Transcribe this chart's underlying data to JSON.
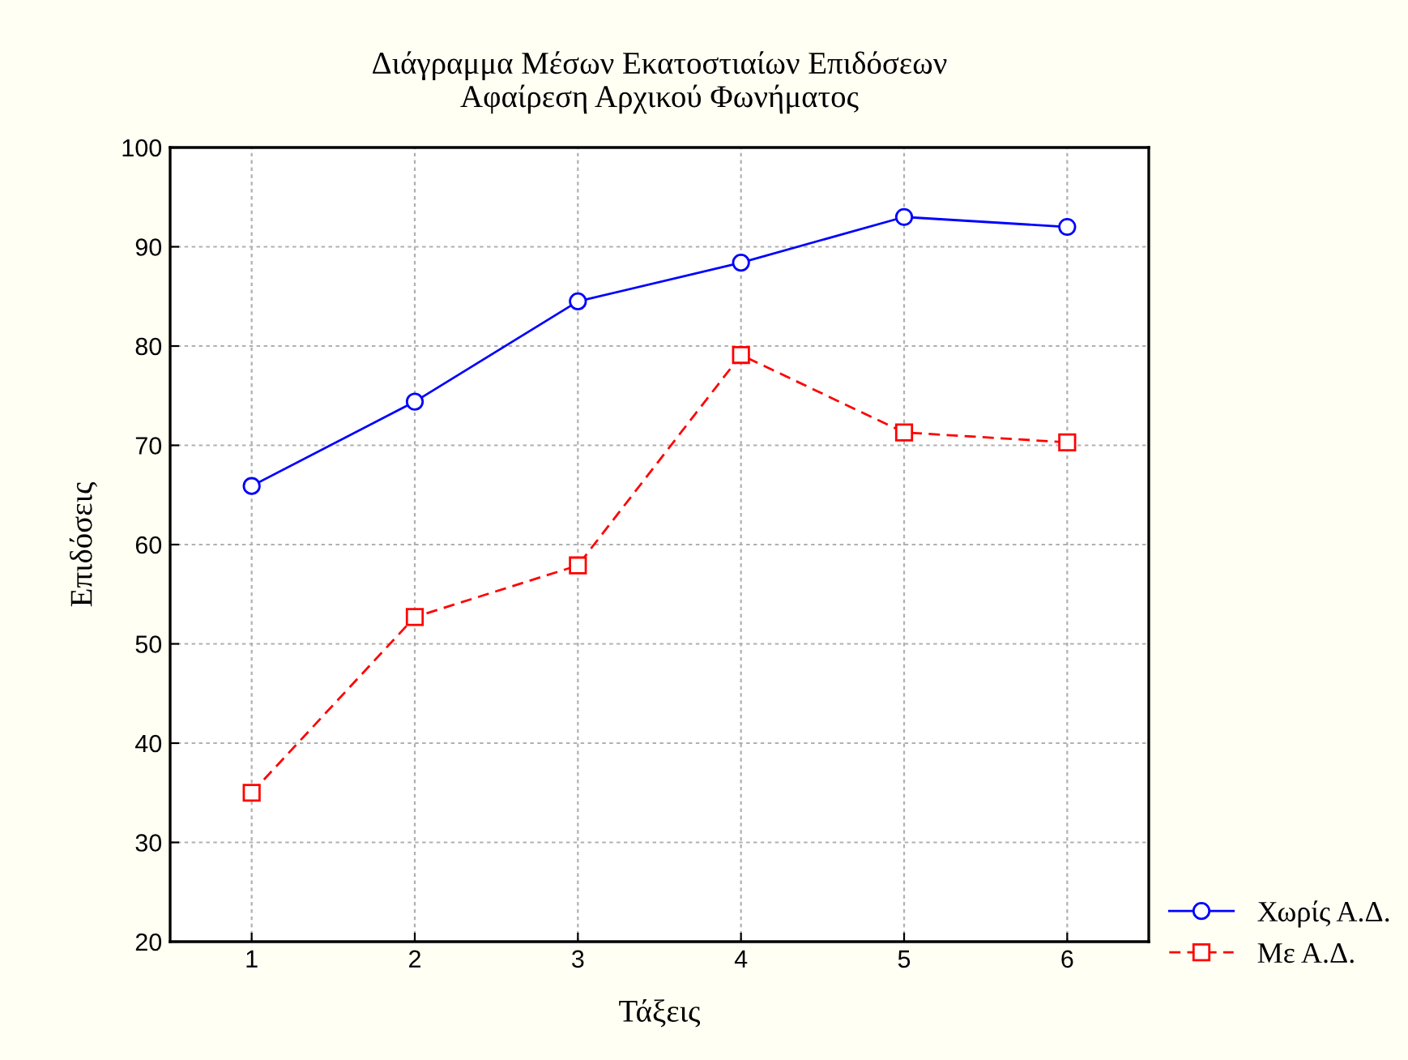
{
  "chart_data": {
    "type": "line",
    "title": "Διάγραμμα Μέσων Εκατοστιαίων Επιδόσεων\nΑφαίρεση Αρχικού Φωνήματος",
    "xlabel": "Τάξεις",
    "ylabel": "Επιδόσεις",
    "x": [
      1,
      2,
      3,
      4,
      5,
      6
    ],
    "series": [
      {
        "name": "Χωρίς Α.Δ.",
        "color": "#0000ff",
        "marker": "circle",
        "line_style": "solid",
        "values": [
          65.9,
          74.4,
          84.5,
          88.4,
          93.0,
          92.0
        ]
      },
      {
        "name": "Με Α.Δ.",
        "color": "#ff0000",
        "marker": "square",
        "line_style": "dashed",
        "values": [
          35.0,
          52.7,
          57.9,
          79.1,
          71.3,
          70.3
        ]
      }
    ],
    "xlim": [
      0.5,
      6.5
    ],
    "xticks": [
      1,
      2,
      3,
      4,
      5,
      6
    ],
    "ylim": [
      20,
      100
    ],
    "yticks": [
      20,
      30,
      40,
      50,
      60,
      70,
      80,
      90,
      100
    ],
    "grid": true,
    "legend": "bottom right"
  }
}
